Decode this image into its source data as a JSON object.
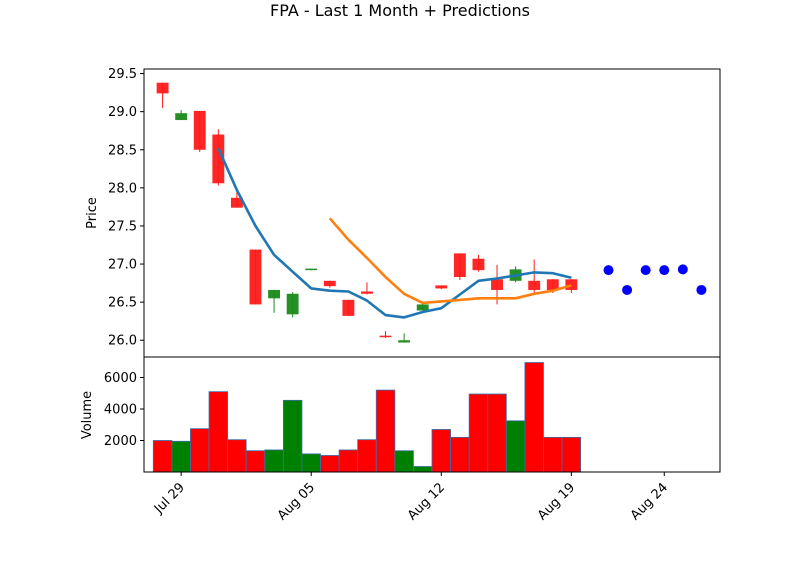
{
  "chart_data": {
    "type": "candlestick",
    "title": "FPA - Last 1 Month + Predictions",
    "price_panel": {
      "ylabel": "Price",
      "ylim": [
        25.78,
        29.56
      ],
      "yticks": [
        "26.0",
        "26.5",
        "27.0",
        "27.5",
        "28.0",
        "28.5",
        "29.0",
        "29.5"
      ],
      "ytick_values": [
        26.0,
        26.5,
        27.0,
        27.5,
        28.0,
        28.5,
        29.0,
        29.5
      ]
    },
    "volume_panel": {
      "ylabel": "Volume",
      "ylim": [
        0,
        7300
      ],
      "yticks": [
        "2000",
        "4000",
        "6000"
      ],
      "ytick_values": [
        2000,
        4000,
        6000
      ]
    },
    "xlim": [
      "2024-07-27",
      "2024-08-27"
    ],
    "xticks": [
      {
        "label": "Jul 29",
        "date": "2024-07-29"
      },
      {
        "label": "Aug 05",
        "date": "2024-08-05"
      },
      {
        "label": "Aug 12",
        "date": "2024-08-12"
      },
      {
        "label": "Aug 19",
        "date": "2024-08-19"
      },
      {
        "label": "Aug 24",
        "date": "2024-08-24"
      }
    ],
    "candles": [
      {
        "date": "2024-07-28",
        "open": 29.38,
        "high": 29.38,
        "low": 29.05,
        "close": 29.24,
        "volume": 2000
      },
      {
        "date": "2024-07-29",
        "open": 28.89,
        "high": 29.02,
        "low": 28.89,
        "close": 28.98,
        "volume": 1950
      },
      {
        "date": "2024-07-30",
        "open": 29.01,
        "high": 29.01,
        "low": 28.47,
        "close": 28.5,
        "volume": 2750
      },
      {
        "date": "2024-07-31",
        "open": 28.7,
        "high": 28.77,
        "low": 28.03,
        "close": 28.06,
        "volume": 5100
      },
      {
        "date": "2024-08-01",
        "open": 27.87,
        "high": 27.97,
        "low": 27.74,
        "close": 27.74,
        "volume": 2050
      },
      {
        "date": "2024-08-02",
        "open": 27.19,
        "high": 27.19,
        "low": 26.47,
        "close": 26.47,
        "volume": 1350
      },
      {
        "date": "2024-08-03",
        "open": 26.55,
        "high": 26.66,
        "low": 26.36,
        "close": 26.66,
        "volume": 1400
      },
      {
        "date": "2024-08-04",
        "open": 26.34,
        "high": 26.63,
        "low": 26.3,
        "close": 26.61,
        "volume": 4550
      },
      {
        "date": "2024-08-05",
        "open": 26.92,
        "high": 26.94,
        "low": 26.92,
        "close": 26.94,
        "volume": 1150
      },
      {
        "date": "2024-08-06",
        "open": 26.78,
        "high": 26.78,
        "low": 26.69,
        "close": 26.71,
        "volume": 1050
      },
      {
        "date": "2024-08-07",
        "open": 26.53,
        "high": 26.53,
        "low": 26.32,
        "close": 26.32,
        "volume": 1400
      },
      {
        "date": "2024-08-08",
        "open": 26.64,
        "high": 26.76,
        "low": 26.6,
        "close": 26.61,
        "volume": 2050
      },
      {
        "date": "2024-08-09",
        "open": 26.06,
        "high": 26.12,
        "low": 26.03,
        "close": 26.04,
        "volume": 5200
      },
      {
        "date": "2024-08-10",
        "open": 25.97,
        "high": 26.09,
        "low": 25.97,
        "close": 26.0,
        "volume": 1350
      },
      {
        "date": "2024-08-11",
        "open": 26.39,
        "high": 26.5,
        "low": 26.39,
        "close": 26.47,
        "volume": 350
      },
      {
        "date": "2024-08-12",
        "open": 26.72,
        "high": 26.72,
        "low": 26.67,
        "close": 26.68,
        "volume": 2700
      },
      {
        "date": "2024-08-13",
        "open": 27.14,
        "high": 27.14,
        "low": 26.79,
        "close": 26.83,
        "volume": 2200
      },
      {
        "date": "2024-08-14",
        "open": 27.07,
        "high": 27.12,
        "low": 26.9,
        "close": 26.92,
        "volume": 4950
      },
      {
        "date": "2024-08-15",
        "open": 26.8,
        "high": 26.99,
        "low": 26.47,
        "close": 26.66,
        "volume": 4950
      },
      {
        "date": "2024-08-16",
        "open": 26.78,
        "high": 26.97,
        "low": 26.76,
        "close": 26.93,
        "volume": 3250
      },
      {
        "date": "2024-08-17",
        "open": 26.78,
        "high": 27.06,
        "low": 26.62,
        "close": 26.66,
        "volume": 6950
      },
      {
        "date": "2024-08-18",
        "open": 26.8,
        "high": 26.8,
        "low": 26.62,
        "close": 26.66,
        "volume": 2200
      },
      {
        "date": "2024-08-19",
        "open": 26.8,
        "high": 26.8,
        "low": 26.62,
        "close": 26.66,
        "volume": 2200
      }
    ],
    "blue_line": [
      28.52,
      27.97,
      27.5,
      27.12,
      26.9,
      26.68,
      26.65,
      26.64,
      26.52,
      26.33,
      26.3,
      26.37,
      26.42,
      26.6,
      26.78,
      26.81,
      26.85,
      26.89,
      26.88,
      26.82
    ],
    "orange_line": [
      27.6,
      27.32,
      27.08,
      26.83,
      26.61,
      26.49,
      26.51,
      26.53,
      26.55,
      26.55,
      26.55,
      26.61,
      26.65,
      26.72
    ],
    "prediction_points": [
      {
        "date": "2024-08-21",
        "value": 26.92
      },
      {
        "date": "2024-08-22",
        "value": 26.66
      },
      {
        "date": "2024-08-23",
        "value": 26.92
      },
      {
        "date": "2024-08-24",
        "value": 26.92
      },
      {
        "date": "2024-08-25",
        "value": 26.93
      },
      {
        "date": "2024-08-26",
        "value": 26.66
      }
    ],
    "colors": {
      "up": "#1a8a1a",
      "down": "#ff1a1a",
      "vol_up": "#008000",
      "vol_down": "#ff0000",
      "vol_edge": "#3a6fb0",
      "blue_line": "#1f77b4",
      "orange_line": "#ff7f0e",
      "prediction": "#0000ff"
    }
  }
}
